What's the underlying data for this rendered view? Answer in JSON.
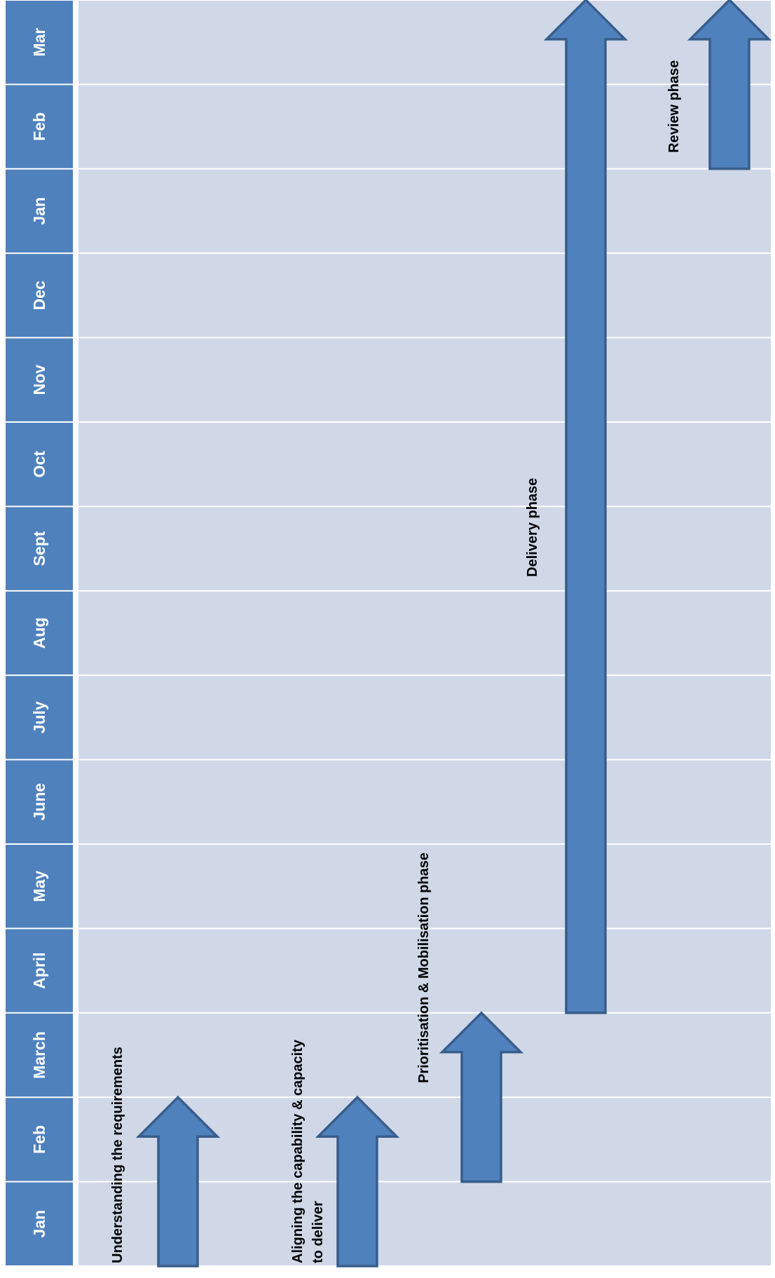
{
  "diagram": {
    "colors": {
      "header_fill": "#4f81bd",
      "row_fill": "#d0d8e8",
      "divider": "#ffffff",
      "arrow_fill": "#4f81bd",
      "arrow_stroke": "#385d8a",
      "month_text": "#ffffff",
      "phase_text": "#000000"
    },
    "months": [
      "Jan",
      "Feb",
      "March",
      "April",
      "May",
      "June",
      "July",
      "Aug",
      "Sept",
      "Oct",
      "Nov",
      "Dec",
      "Jan",
      "Feb",
      "Mar"
    ],
    "phases": [
      {
        "lines": [
          "Understanding the requirements"
        ],
        "start_month": 1,
        "end_month": 2
      },
      {
        "lines": [
          "Aligning the capability & capacity",
          "to deliver"
        ],
        "start_month": 1,
        "end_month": 2
      },
      {
        "lines": [
          "Prioritisation & Mobilisation  phase"
        ],
        "start_month": 2,
        "end_month": 3
      },
      {
        "lines": [
          "Delivery phase"
        ],
        "start_month": 4,
        "end_month": 15
      },
      {
        "lines": [
          "Review phase"
        ],
        "start_month": 14,
        "end_month": 15
      }
    ]
  }
}
